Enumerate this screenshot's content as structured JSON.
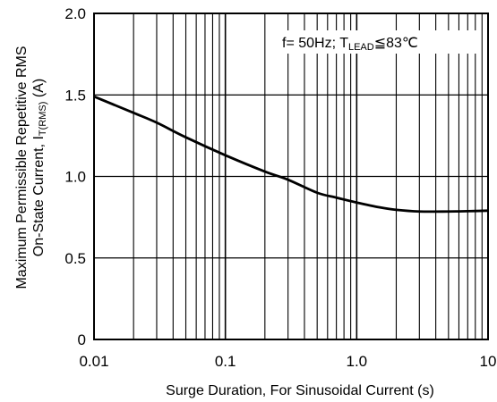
{
  "chart_data": {
    "type": "line",
    "x_scale": "log",
    "xlim": [
      0.01,
      10
    ],
    "ylim": [
      0,
      2.0
    ],
    "x_tick_labels": [
      "0.01",
      "0.1",
      "1.0",
      "10"
    ],
    "y_tick_labels": [
      "0",
      "0.5",
      "1.0",
      "1.5",
      "2.0"
    ],
    "x_ticks": [
      0.01,
      0.1,
      1.0,
      10
    ],
    "y_ticks": [
      0,
      0.5,
      1.0,
      1.5,
      2.0
    ],
    "xlabel": "Surge Duration, For Sinusoidal Current (s)",
    "ylabel_line1": "Maximum Permissible Repetitive RMS",
    "ylabel_line2_prefix": "On-State Current, I",
    "ylabel_line2_sub": "T(RMS)",
    "ylabel_line2_suffix": " (A)",
    "annotation": {
      "prefix": "f= 50Hz; T",
      "sub": "LEAD",
      "suffix": "≦83℃"
    },
    "grid": true,
    "series": [
      {
        "x": [
          0.01,
          0.02,
          0.03,
          0.05,
          0.1,
          0.2,
          0.3,
          0.5,
          0.7,
          1.0,
          1.5,
          2.0,
          3.0,
          5.0,
          7.0,
          10.0
        ],
        "y": [
          1.49,
          1.39,
          1.33,
          1.24,
          1.13,
          1.03,
          0.98,
          0.9,
          0.87,
          0.84,
          0.81,
          0.795,
          0.785,
          0.785,
          0.787,
          0.79
        ]
      }
    ]
  }
}
